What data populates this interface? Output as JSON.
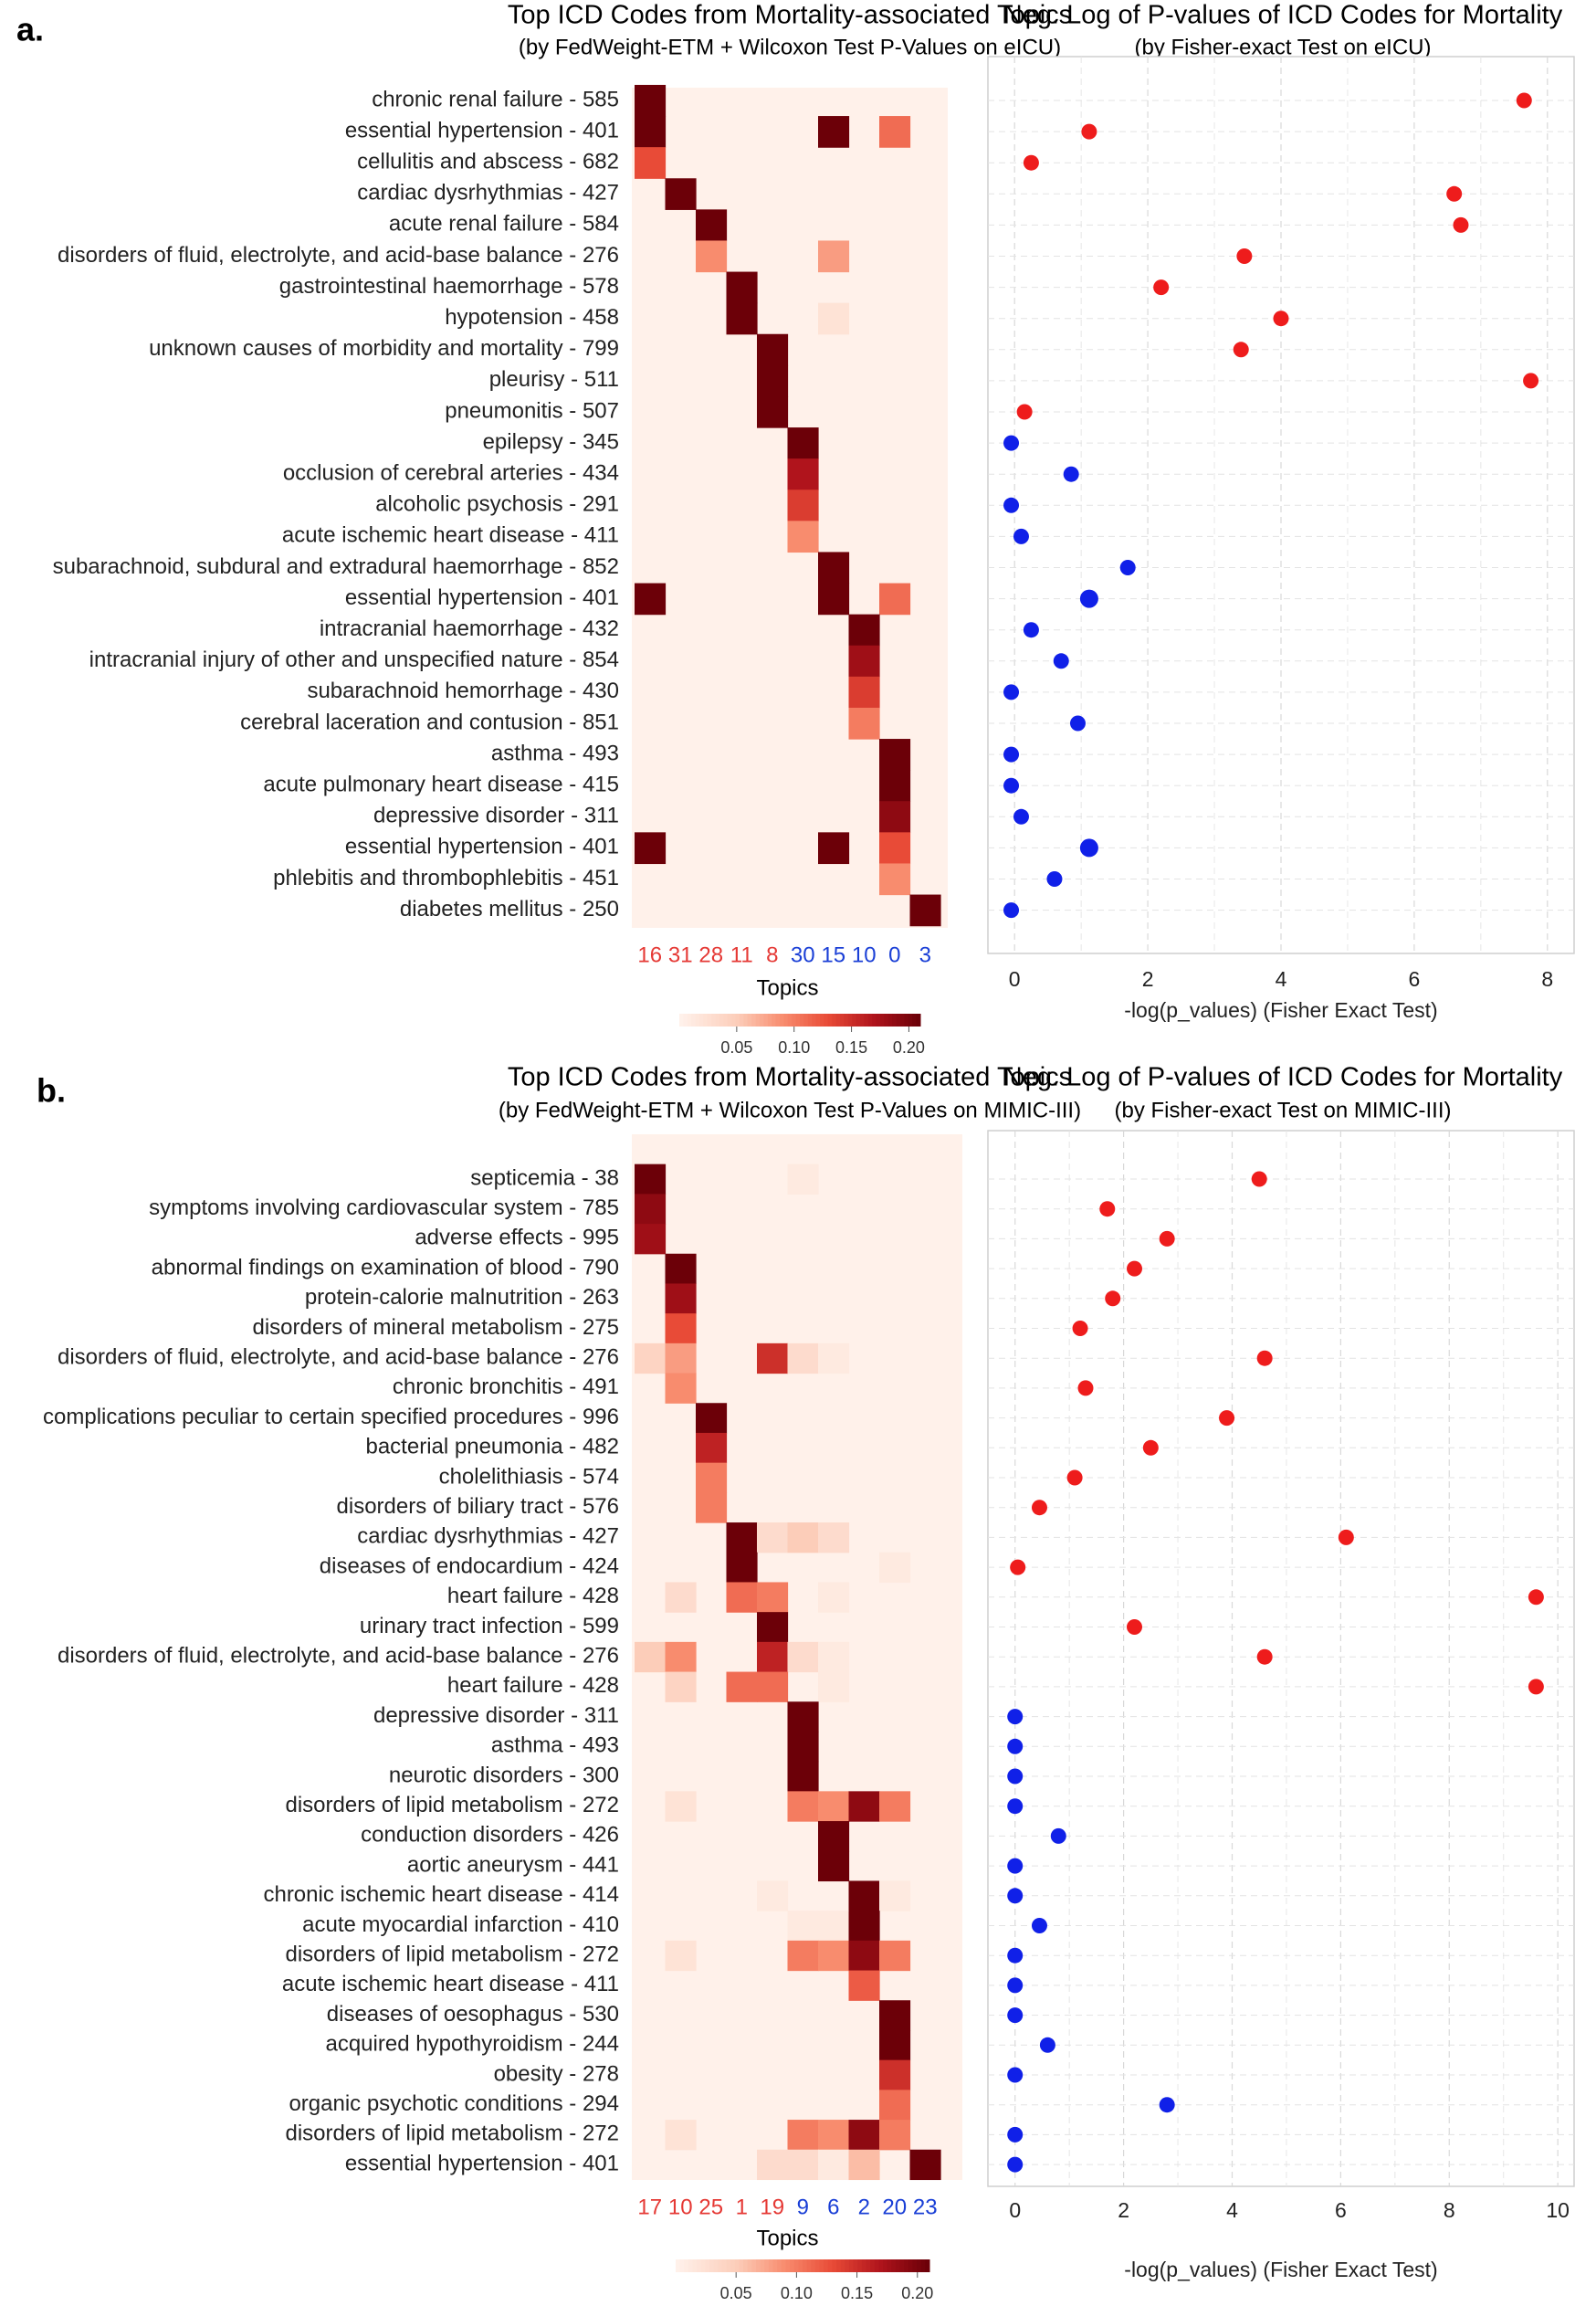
{
  "chart_data": [
    {
      "panel_label": "a.",
      "type": "heatmap",
      "title": "Top ICD Codes from Mortality-associated Topics",
      "subtitle": "(by FedWeight-ETM + Wilcoxon Test P-Values on eICU)",
      "xlabel": "Topics",
      "topics": [
        "16",
        "31",
        "28",
        "11",
        "8",
        "30",
        "15",
        "10",
        "0",
        "3"
      ],
      "topic_colors": [
        "#e53935",
        "#e53935",
        "#e53935",
        "#e53935",
        "#e53935",
        "#1a3fd6",
        "#1a3fd6",
        "#1a3fd6",
        "#1a3fd6",
        "#1a3fd6"
      ],
      "rows": [
        "chronic renal failure - 585",
        "essential hypertension - 401",
        "cellulitis and abscess - 682",
        "cardiac dysrhythmias - 427",
        "acute renal failure - 584",
        "disorders of fluid, electrolyte, and acid-base balance - 276",
        "gastrointestinal haemorrhage - 578",
        "hypotension - 458",
        "unknown causes of morbidity and mortality - 799",
        "pleurisy - 511",
        "pneumonitis - 507",
        "epilepsy - 345",
        "occlusion of cerebral arteries - 434",
        "alcoholic psychosis - 291",
        "acute ischemic heart disease - 411",
        "subarachnoid, subdural and extradural haemorrhage - 852",
        "essential hypertension - 401",
        "intracranial haemorrhage - 432",
        "intracranial injury of other and unspecified nature - 854",
        "subarachnoid hemorrhage - 430",
        "cerebral laceration and contusion - 851",
        "asthma - 493",
        "acute pulmonary heart disease - 415",
        "depressive disorder - 311",
        "essential hypertension - 401",
        "phlebitis and thrombophlebitis - 451",
        "diabetes mellitus - 250"
      ],
      "matrix": [
        [
          0.21,
          0,
          0,
          0,
          0,
          0,
          0,
          0,
          0,
          0
        ],
        [
          0.21,
          0,
          0,
          0,
          0,
          0,
          0.21,
          0,
          0.11,
          0
        ],
        [
          0.13,
          0,
          0,
          0,
          0,
          0,
          0,
          0,
          0,
          0
        ],
        [
          0,
          0.21,
          0,
          0,
          0,
          0,
          0,
          0,
          0,
          0
        ],
        [
          0,
          0,
          0.21,
          0,
          0,
          0,
          0,
          0,
          0,
          0
        ],
        [
          0,
          0,
          0.09,
          0,
          0,
          0,
          0.08,
          0,
          0,
          0
        ],
        [
          0,
          0,
          0,
          0.21,
          0,
          0,
          0,
          0,
          0,
          0
        ],
        [
          0,
          0,
          0,
          0.21,
          0,
          0,
          0.02,
          0,
          0,
          0
        ],
        [
          0,
          0,
          0,
          0,
          0.21,
          0,
          0,
          0,
          0,
          0
        ],
        [
          0,
          0,
          0,
          0,
          0.21,
          0,
          0,
          0,
          0,
          0
        ],
        [
          0,
          0,
          0,
          0,
          0.21,
          0,
          0,
          0,
          0,
          0
        ],
        [
          0,
          0,
          0,
          0,
          0,
          0.21,
          0,
          0,
          0,
          0
        ],
        [
          0,
          0,
          0,
          0,
          0,
          0.17,
          0,
          0,
          0,
          0
        ],
        [
          0,
          0,
          0,
          0,
          0,
          0.14,
          0,
          0,
          0,
          0
        ],
        [
          0,
          0,
          0,
          0,
          0,
          0.09,
          0,
          0,
          0,
          0
        ],
        [
          0,
          0,
          0,
          0,
          0,
          0,
          0.21,
          0,
          0,
          0
        ],
        [
          0.21,
          0,
          0,
          0,
          0,
          0,
          0.21,
          0,
          0.11,
          0
        ],
        [
          0,
          0,
          0,
          0,
          0,
          0,
          0,
          0.21,
          0,
          0
        ],
        [
          0,
          0,
          0,
          0,
          0,
          0,
          0,
          0.18,
          0,
          0
        ],
        [
          0,
          0,
          0,
          0,
          0,
          0,
          0,
          0.14,
          0,
          0
        ],
        [
          0,
          0,
          0,
          0,
          0,
          0,
          0,
          0.1,
          0,
          0
        ],
        [
          0,
          0,
          0,
          0,
          0,
          0,
          0,
          0,
          0.21,
          0
        ],
        [
          0,
          0,
          0,
          0,
          0,
          0,
          0,
          0,
          0.21,
          0
        ],
        [
          0,
          0,
          0,
          0,
          0,
          0,
          0,
          0,
          0.19,
          0
        ],
        [
          0.21,
          0,
          0,
          0,
          0,
          0,
          0.21,
          0,
          0.13,
          0
        ],
        [
          0,
          0,
          0,
          0,
          0,
          0,
          0,
          0,
          0.09,
          0
        ],
        [
          0,
          0,
          0,
          0,
          0,
          0,
          0,
          0,
          0,
          0.21
        ]
      ],
      "colorbar": {
        "ticks": [
          "0.05",
          "0.10",
          "0.15",
          "0.20"
        ],
        "tick_values": [
          0.05,
          0.1,
          0.15,
          0.2
        ],
        "vmax": 0.21
      }
    },
    {
      "panel_label": "",
      "type": "scatter",
      "title": "Neg. Log of P-values of ICD Codes for Mortality",
      "subtitle": "(by Fisher-exact Test on eICU)",
      "xlabel": "-log(p_values) (Fisher Exact Test)",
      "xlim": [
        -0.4,
        8.4
      ],
      "xticks": [
        0,
        2,
        4,
        6,
        8
      ],
      "values": [
        7.65,
        1.12,
        0.25,
        6.6,
        6.7,
        3.45,
        2.2,
        4.0,
        3.4,
        7.75,
        0.15,
        -0.05,
        0.85,
        -0.05,
        0.1,
        1.7,
        1.12,
        0.25,
        0.7,
        -0.05,
        0.95,
        -0.05,
        -0.05,
        0.1,
        1.12,
        0.6,
        -0.05
      ],
      "point_colors": [
        "red",
        "red",
        "red",
        "red",
        "red",
        "red",
        "red",
        "red",
        "red",
        "red",
        "red",
        "blue",
        "blue",
        "blue",
        "blue",
        "blue",
        "blue",
        "blue",
        "blue",
        "blue",
        "blue",
        "blue",
        "blue",
        "blue",
        "blue",
        "blue",
        "blue"
      ],
      "big": [
        false,
        false,
        false,
        false,
        false,
        false,
        false,
        false,
        false,
        false,
        false,
        false,
        false,
        false,
        false,
        false,
        true,
        false,
        false,
        false,
        false,
        false,
        false,
        false,
        true,
        false,
        false
      ]
    },
    {
      "panel_label": "b.",
      "type": "heatmap",
      "title": "Top ICD Codes from Mortality-associated Topics",
      "subtitle": "(by FedWeight-ETM + Wilcoxon Test P-Values on MIMIC-III)",
      "xlabel": "Topics",
      "topics": [
        "17",
        "10",
        "25",
        "1",
        "19",
        "9",
        "6",
        "2",
        "20",
        "23"
      ],
      "topic_colors": [
        "#e53935",
        "#e53935",
        "#e53935",
        "#e53935",
        "#e53935",
        "#1a3fd6",
        "#1a3fd6",
        "#1a3fd6",
        "#1a3fd6",
        "#1a3fd6"
      ],
      "rows": [
        "septicemia - 38",
        "symptoms involving cardiovascular system - 785",
        "adverse effects - 995",
        "abnormal findings on examination of blood - 790",
        "protein-calorie malnutrition - 263",
        "disorders of mineral metabolism - 275",
        "disorders of fluid, electrolyte, and acid-base balance - 276",
        "chronic bronchitis - 491",
        "complications peculiar to certain specified procedures - 996",
        "bacterial pneumonia - 482",
        "cholelithiasis - 574",
        "disorders of biliary tract - 576",
        "cardiac dysrhythmias - 427",
        "diseases of endocardium - 424",
        "heart failure - 428",
        "urinary tract infection - 599",
        "disorders of fluid, electrolyte, and acid-base balance - 276",
        "heart failure - 428",
        "depressive disorder - 311",
        "asthma - 493",
        "neurotic disorders - 300",
        "disorders of lipid metabolism - 272",
        "conduction disorders - 426",
        "aortic aneurysm - 441",
        "chronic ischemic heart disease - 414",
        "acute myocardial infarction - 410",
        "disorders of lipid metabolism - 272",
        "acute ischemic heart disease - 411",
        "diseases of oesophagus - 530",
        "acquired hypothyroidism - 244",
        "obesity - 278",
        "organic psychotic conditions - 294",
        "disorders of lipid metabolism - 272",
        "essential hypertension - 401"
      ],
      "matrix": [
        [
          0.21,
          0,
          0,
          0,
          0,
          0.01,
          0,
          0,
          0,
          0
        ],
        [
          0.19,
          0,
          0,
          0,
          0,
          0,
          0,
          0,
          0,
          0
        ],
        [
          0.18,
          0,
          0,
          0,
          0,
          0,
          0,
          0,
          0,
          0
        ],
        [
          0,
          0.21,
          0,
          0,
          0,
          0,
          0,
          0,
          0,
          0
        ],
        [
          0,
          0.18,
          0,
          0,
          0,
          0,
          0,
          0,
          0,
          0
        ],
        [
          0,
          0.13,
          0,
          0,
          0,
          0,
          0,
          0,
          0,
          0
        ],
        [
          0.04,
          0.08,
          0,
          0,
          0.15,
          0.03,
          0.01,
          0,
          0,
          0
        ],
        [
          0,
          0.09,
          0,
          0,
          0,
          0,
          0,
          0,
          0,
          0
        ],
        [
          0,
          0,
          0.21,
          0,
          0,
          0,
          0,
          0,
          0,
          0
        ],
        [
          0,
          0,
          0.16,
          0,
          0,
          0,
          0,
          0,
          0,
          0
        ],
        [
          0,
          0,
          0.1,
          0,
          0,
          0,
          0,
          0,
          0,
          0
        ],
        [
          0,
          0,
          0.1,
          0,
          0,
          0,
          0,
          0,
          0,
          0
        ],
        [
          0,
          0,
          0,
          0.21,
          0.03,
          0.05,
          0.03,
          0,
          0,
          0
        ],
        [
          0,
          0,
          0,
          0.21,
          0,
          0,
          0,
          0,
          0.01,
          0
        ],
        [
          0,
          0.03,
          0,
          0.11,
          0.1,
          0,
          0.01,
          0,
          0,
          0
        ],
        [
          0,
          0,
          0,
          0,
          0.21,
          0,
          0,
          0,
          0,
          0
        ],
        [
          0.05,
          0.09,
          0,
          0,
          0.16,
          0.03,
          0.01,
          0,
          0,
          0
        ],
        [
          0,
          0.04,
          0,
          0.11,
          0.11,
          0,
          0.01,
          0,
          0,
          0
        ],
        [
          0,
          0,
          0,
          0,
          0,
          0.21,
          0,
          0,
          0,
          0
        ],
        [
          0,
          0,
          0,
          0,
          0,
          0.21,
          0,
          0,
          0,
          0
        ],
        [
          0,
          0,
          0,
          0,
          0,
          0.21,
          0,
          0,
          0,
          0
        ],
        [
          0,
          0.02,
          0,
          0,
          0,
          0.1,
          0.09,
          0.19,
          0.1,
          0
        ],
        [
          0,
          0,
          0,
          0,
          0,
          0,
          0.21,
          0,
          0,
          0
        ],
        [
          0,
          0,
          0,
          0,
          0,
          0,
          0.21,
          0,
          0,
          0
        ],
        [
          0,
          0,
          0,
          0,
          0.01,
          0,
          0,
          0.21,
          0.01,
          0
        ],
        [
          0,
          0,
          0,
          0,
          0,
          0.01,
          0.01,
          0.21,
          0,
          0
        ],
        [
          0,
          0.02,
          0,
          0,
          0,
          0.1,
          0.09,
          0.19,
          0.1,
          0
        ],
        [
          0,
          0,
          0,
          0,
          0,
          0,
          0,
          0.12,
          0,
          0
        ],
        [
          0,
          0,
          0,
          0,
          0,
          0,
          0,
          0,
          0.21,
          0
        ],
        [
          0,
          0,
          0,
          0,
          0,
          0,
          0,
          0,
          0.21,
          0
        ],
        [
          0,
          0,
          0,
          0,
          0,
          0,
          0,
          0,
          0.15,
          0
        ],
        [
          0,
          0,
          0,
          0,
          0,
          0,
          0,
          0,
          0.11,
          0
        ],
        [
          0,
          0.02,
          0,
          0,
          0,
          0.1,
          0.09,
          0.19,
          0.1,
          0
        ],
        [
          0,
          0,
          0,
          0,
          0.03,
          0.03,
          0.01,
          0.06,
          0,
          0.21
        ]
      ],
      "colorbar": {
        "ticks": [
          "0.05",
          "0.10",
          "0.15",
          "0.20"
        ],
        "tick_values": [
          0.05,
          0.1,
          0.15,
          0.2
        ],
        "vmax": 0.21
      }
    },
    {
      "panel_label": "",
      "type": "scatter",
      "title": "Neg. Log of P-values of ICD Codes for Mortality",
      "subtitle": "(by Fisher-exact Test on MIMIC-III)",
      "xlabel": "-log(p_values) (Fisher Exact Test)",
      "xlim": [
        -0.5,
        10.3
      ],
      "xticks": [
        0,
        2,
        4,
        6,
        8,
        10
      ],
      "values": [
        4.5,
        1.7,
        2.8,
        2.2,
        1.8,
        1.2,
        4.6,
        1.3,
        3.9,
        2.5,
        1.1,
        0.45,
        6.1,
        0.05,
        9.6,
        2.2,
        4.6,
        9.6,
        0,
        0,
        0,
        0,
        0.8,
        0,
        0,
        0.45,
        0,
        0,
        0,
        0.6,
        0,
        2.8,
        0,
        0
      ],
      "point_colors": [
        "red",
        "red",
        "red",
        "red",
        "red",
        "red",
        "red",
        "red",
        "red",
        "red",
        "red",
        "red",
        "red",
        "red",
        "red",
        "red",
        "red",
        "red",
        "blue",
        "blue",
        "blue",
        "blue",
        "blue",
        "blue",
        "blue",
        "blue",
        "blue",
        "blue",
        "blue",
        "blue",
        "blue",
        "blue",
        "blue",
        "blue"
      ],
      "big": [
        false,
        false,
        false,
        false,
        false,
        false,
        false,
        false,
        false,
        false,
        false,
        false,
        false,
        false,
        false,
        false,
        false,
        false,
        false,
        false,
        false,
        false,
        false,
        false,
        false,
        false,
        false,
        false,
        false,
        false,
        false,
        false,
        false,
        false
      ]
    }
  ]
}
